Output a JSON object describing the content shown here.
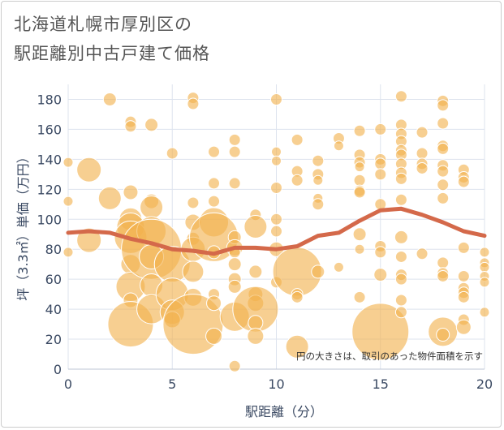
{
  "chart_data": {
    "type": "scatter",
    "title_lines": [
      "北海道札幌市厚別区の",
      "駅距離別中古戸建て価格"
    ],
    "xlabel": "駅距離（分）",
    "ylabel": "坪（3.3㎡）単価（万円）",
    "xlim": [
      0,
      20
    ],
    "ylim": [
      0,
      190
    ],
    "xticks": [
      "0",
      "5",
      "10",
      "15",
      "20"
    ],
    "yticks": [
      "0",
      "20",
      "40",
      "60",
      "80",
      "100",
      "120",
      "140",
      "160",
      "180"
    ],
    "annotation": "円の大きさは、取引のあった物件面積を示す",
    "bubble_color": "#f2b24d",
    "line_color": "#d4694a",
    "bubbles": [
      [
        0,
        138,
        6
      ],
      [
        0,
        112,
        6
      ],
      [
        0,
        78,
        6
      ],
      [
        1,
        133,
        15
      ],
      [
        1,
        86,
        15
      ],
      [
        2,
        180,
        8
      ],
      [
        2,
        114,
        14
      ],
      [
        3,
        165,
        7
      ],
      [
        3,
        162,
        7
      ],
      [
        3,
        118,
        9
      ],
      [
        3,
        100,
        14
      ],
      [
        3,
        95,
        17
      ],
      [
        3,
        88,
        20
      ],
      [
        3,
        70,
        12
      ],
      [
        3,
        55,
        18
      ],
      [
        3,
        46,
        9
      ],
      [
        3,
        30,
        28
      ],
      [
        4,
        163,
        8
      ],
      [
        4,
        112,
        9
      ],
      [
        4,
        108,
        14
      ],
      [
        4,
        92,
        18
      ],
      [
        4,
        80,
        37
      ],
      [
        4,
        75,
        15
      ],
      [
        4,
        56,
        14
      ],
      [
        4,
        40,
        18
      ],
      [
        5,
        144,
        7
      ],
      [
        5,
        70,
        22
      ],
      [
        5,
        50,
        20
      ],
      [
        5,
        38,
        15
      ],
      [
        5,
        33,
        10
      ],
      [
        6,
        181,
        7
      ],
      [
        6,
        177,
        7
      ],
      [
        6,
        111,
        7
      ],
      [
        6,
        98,
        10
      ],
      [
        6,
        87,
        8
      ],
      [
        6,
        80,
        15
      ],
      [
        6,
        65,
        13
      ],
      [
        6,
        48,
        11
      ],
      [
        6,
        30,
        37
      ],
      [
        7,
        145,
        7
      ],
      [
        7,
        124,
        7
      ],
      [
        7,
        112,
        7
      ],
      [
        7,
        98,
        18
      ],
      [
        7,
        88,
        30
      ],
      [
        7,
        78,
        8
      ],
      [
        7,
        50,
        7
      ],
      [
        7,
        44,
        9
      ],
      [
        7,
        22,
        10
      ],
      [
        8,
        153,
        7
      ],
      [
        8,
        145,
        7
      ],
      [
        8,
        124,
        7
      ],
      [
        8,
        88,
        8
      ],
      [
        8,
        81,
        10
      ],
      [
        8,
        78,
        7
      ],
      [
        8,
        70,
        8
      ],
      [
        8,
        60,
        8
      ],
      [
        8,
        55,
        8
      ],
      [
        8,
        35,
        18
      ],
      [
        8,
        2,
        7
      ],
      [
        9,
        103,
        7
      ],
      [
        9,
        95,
        14
      ],
      [
        9,
        65,
        8
      ],
      [
        9,
        50,
        9
      ],
      [
        9,
        44,
        10
      ],
      [
        9,
        40,
        28
      ],
      [
        9,
        31,
        9
      ],
      [
        9,
        22,
        10
      ],
      [
        10,
        180,
        7
      ],
      [
        10,
        145,
        6
      ],
      [
        10,
        139,
        6
      ],
      [
        10,
        121,
        7
      ],
      [
        10,
        100,
        7
      ],
      [
        10,
        92,
        7
      ],
      [
        10,
        80,
        9
      ],
      [
        10,
        58,
        7
      ],
      [
        11,
        153,
        7
      ],
      [
        11,
        132,
        7
      ],
      [
        11,
        126,
        7
      ],
      [
        11,
        65,
        30
      ],
      [
        11,
        50,
        7
      ],
      [
        11,
        48,
        7
      ],
      [
        11,
        15,
        14
      ],
      [
        12,
        139,
        7
      ],
      [
        12,
        130,
        7
      ],
      [
        12,
        126,
        6
      ],
      [
        12,
        114,
        6
      ],
      [
        12,
        110,
        7
      ],
      [
        12,
        65,
        8
      ],
      [
        13,
        154,
        7
      ],
      [
        13,
        149,
        6
      ],
      [
        13,
        68,
        6
      ],
      [
        14,
        159,
        7
      ],
      [
        14,
        143,
        7
      ],
      [
        14,
        138,
        7
      ],
      [
        14,
        135,
        6
      ],
      [
        14,
        126,
        7
      ],
      [
        14,
        119,
        7
      ],
      [
        14,
        118,
        7
      ],
      [
        14,
        90,
        8
      ],
      [
        14,
        80,
        6
      ],
      [
        14,
        48,
        7
      ],
      [
        15,
        160,
        7
      ],
      [
        15,
        140,
        7
      ],
      [
        15,
        137,
        7
      ],
      [
        15,
        130,
        7
      ],
      [
        15,
        110,
        7
      ],
      [
        15,
        82,
        7
      ],
      [
        15,
        78,
        7
      ],
      [
        15,
        63,
        8
      ],
      [
        15,
        25,
        35
      ],
      [
        16,
        182,
        7
      ],
      [
        16,
        163,
        7
      ],
      [
        16,
        157,
        7
      ],
      [
        16,
        152,
        7
      ],
      [
        16,
        146,
        7
      ],
      [
        16,
        143,
        7
      ],
      [
        16,
        137,
        7
      ],
      [
        16,
        131,
        7
      ],
      [
        16,
        127,
        7
      ],
      [
        16,
        113,
        7
      ],
      [
        16,
        88,
        8
      ],
      [
        16,
        75,
        7
      ],
      [
        16,
        63,
        7
      ],
      [
        16,
        60,
        7
      ],
      [
        16,
        46,
        7
      ],
      [
        16,
        38,
        7
      ],
      [
        17,
        158,
        7
      ],
      [
        17,
        144,
        7
      ],
      [
        17,
        137,
        7
      ],
      [
        17,
        134,
        7
      ],
      [
        17,
        77,
        7
      ],
      [
        18,
        179,
        7
      ],
      [
        18,
        176,
        7
      ],
      [
        18,
        164,
        7
      ],
      [
        18,
        149,
        7
      ],
      [
        18,
        147,
        7
      ],
      [
        18,
        136,
        7
      ],
      [
        18,
        132,
        7
      ],
      [
        18,
        123,
        7
      ],
      [
        18,
        114,
        7
      ],
      [
        18,
        71,
        7
      ],
      [
        18,
        64,
        7
      ],
      [
        18,
        62,
        7
      ],
      [
        18,
        25,
        18
      ],
      [
        18,
        23,
        8
      ],
      [
        19,
        133,
        7
      ],
      [
        19,
        128,
        7
      ],
      [
        19,
        125,
        7
      ],
      [
        19,
        81,
        7
      ],
      [
        19,
        62,
        7
      ],
      [
        19,
        54,
        7
      ],
      [
        19,
        51,
        7
      ],
      [
        19,
        48,
        7
      ],
      [
        19,
        33,
        7
      ],
      [
        19,
        28,
        9
      ],
      [
        20,
        78,
        6
      ],
      [
        20,
        71,
        6
      ],
      [
        20,
        68,
        6
      ],
      [
        20,
        62,
        6
      ],
      [
        20,
        58,
        6
      ],
      [
        20,
        38,
        6
      ]
    ],
    "trend": [
      [
        0,
        91
      ],
      [
        1,
        92
      ],
      [
        2,
        91
      ],
      [
        3,
        87
      ],
      [
        4,
        84
      ],
      [
        5,
        80
      ],
      [
        6,
        79
      ],
      [
        7,
        77
      ],
      [
        8,
        81
      ],
      [
        9,
        81
      ],
      [
        10,
        80
      ],
      [
        11,
        82
      ],
      [
        12,
        89
      ],
      [
        13,
        91
      ],
      [
        14,
        99
      ],
      [
        15,
        106
      ],
      [
        16,
        107
      ],
      [
        17,
        103
      ],
      [
        18,
        98
      ],
      [
        19,
        92
      ],
      [
        20,
        89
      ]
    ]
  }
}
